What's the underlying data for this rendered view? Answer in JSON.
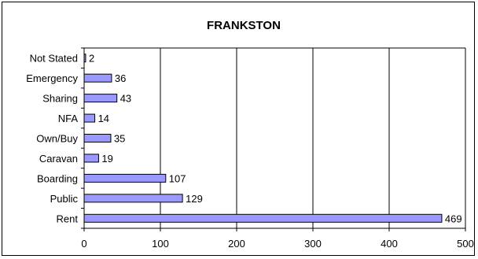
{
  "chart_data": {
    "type": "bar",
    "orientation": "horizontal",
    "title": "FRANKSTON",
    "categories": [
      "Not Stated",
      "Emergency",
      "Sharing",
      "NFA",
      "Own/Buy",
      "Caravan",
      "Boarding",
      "Public",
      "Rent"
    ],
    "values": [
      2,
      36,
      43,
      14,
      35,
      19,
      107,
      129,
      469
    ],
    "data_labels": [
      "2",
      "36",
      "43",
      "14",
      "35",
      "19",
      "107",
      "129",
      "469"
    ],
    "x_ticks": [
      0,
      100,
      200,
      300,
      400,
      500
    ],
    "x_tick_labels": [
      "0",
      "100",
      "200",
      "300",
      "400",
      "500"
    ],
    "xlim": [
      0,
      500
    ],
    "xlabel": "",
    "ylabel": "",
    "grid": "vertical",
    "legend": "none",
    "colors": {
      "bar_fill": "#9999ff",
      "bar_stroke": "#000000",
      "grid": "#000000",
      "background": "#ffffff"
    }
  }
}
